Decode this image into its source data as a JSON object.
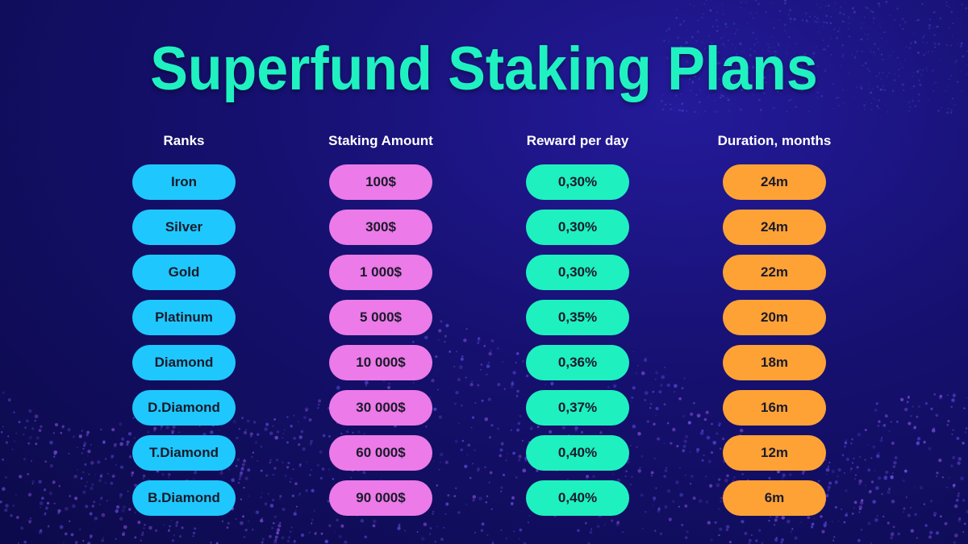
{
  "title": "Superfund Staking Plans",
  "colors": {
    "title": "#1ff2c0",
    "rank": "#1ec8ff",
    "amount": "#ec7ae8",
    "reward": "#1ff0c0",
    "duration": "#ffa236",
    "background": "#15106e"
  },
  "headers": {
    "ranks": "Ranks",
    "amount": "Staking Amount",
    "reward": "Reward per day",
    "duration": "Duration, months"
  },
  "ranks": [
    "Iron",
    "Silver",
    "Gold",
    "Platinum",
    "Diamond",
    "D.Diamond",
    "T.Diamond",
    "B.Diamond"
  ],
  "amounts": [
    "100$",
    "300$",
    "1 000$",
    "5 000$",
    "10 000$",
    "30 000$",
    "60 000$",
    "90 000$"
  ],
  "rewards": [
    "0,30%",
    "0,30%",
    "0,30%",
    "0,35%",
    "0,36%",
    "0,37%",
    "0,40%",
    "0,40%"
  ],
  "durations": [
    "24m",
    "24m",
    "22m",
    "20m",
    "18m",
    "16m",
    "12m",
    "6m"
  ]
}
